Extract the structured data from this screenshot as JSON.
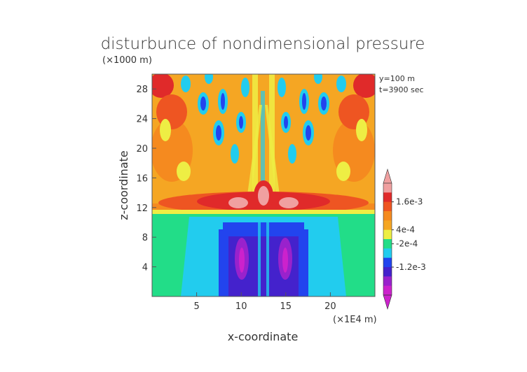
{
  "chart_data": {
    "type": "heatmap",
    "title": "disturbunce of nondimensional pressure",
    "z_unit_label": "(×1000 m)",
    "x_unit_label": "(×1E4 m)",
    "xlabel": "x-coordinate",
    "ylabel": "z-coordinate",
    "info": [
      "y=100 m",
      "t=3900 sec"
    ],
    "xlim": [
      0,
      25
    ],
    "ylim": [
      0,
      30
    ],
    "x_ticks": [
      5,
      10,
      15,
      20
    ],
    "y_ticks": [
      4,
      8,
      12,
      16,
      20,
      24,
      28
    ],
    "colorbar": {
      "colors": [
        "#cc22cc",
        "#9922cc",
        "#4422cc",
        "#2244ee",
        "#22ccee",
        "#22dd88",
        "#eeee44",
        "#f5a623",
        "#f58a1f",
        "#ee5522",
        "#e02a2a",
        "#f0a0a0"
      ],
      "labels": [
        "1.6e-3",
        "4e-4",
        "-2e-4",
        "-1.2e-3"
      ],
      "label_values": [
        0.0016,
        0.0004,
        -0.0002,
        -0.0012
      ]
    }
  }
}
